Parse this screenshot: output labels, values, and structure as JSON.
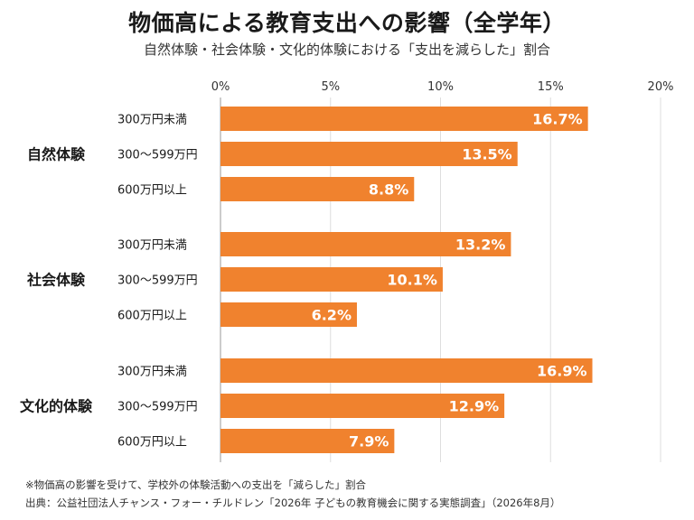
{
  "chart_data": {
    "type": "bar",
    "orientation": "horizontal",
    "title": "物価高による教育支出への影響（全学年）",
    "subtitle": "自然体験・社会体験・文化的体験における「支出を減らした」割合",
    "xlim": [
      0,
      20
    ],
    "ticks": [
      0,
      5,
      10,
      15,
      20
    ],
    "tick_labels": [
      "0%",
      "5%",
      "10%",
      "15%",
      "20%"
    ],
    "grid": true,
    "groups": [
      {
        "name": "自然体験",
        "bars": [
          {
            "label": "300万円未満",
            "value": 16.7,
            "value_label": "16.7%"
          },
          {
            "label": "300〜599万円",
            "value": 13.5,
            "value_label": "13.5%"
          },
          {
            "label": "600万円以上",
            "value": 8.8,
            "value_label": "8.8%"
          }
        ]
      },
      {
        "name": "社会体験",
        "bars": [
          {
            "label": "300万円未満",
            "value": 13.2,
            "value_label": "13.2%"
          },
          {
            "label": "300〜599万円",
            "value": 10.1,
            "value_label": "10.1%"
          },
          {
            "label": "600万円以上",
            "value": 6.2,
            "value_label": "6.2%"
          }
        ]
      },
      {
        "name": "文化的体験",
        "bars": [
          {
            "label": "300万円未満",
            "value": 16.9,
            "value_label": "16.9%"
          },
          {
            "label": "300〜599万円",
            "value": 12.9,
            "value_label": "12.9%"
          },
          {
            "label": "600万円以上",
            "value": 7.9,
            "value_label": "7.9%"
          }
        ]
      }
    ],
    "bar_color": "#f0822e",
    "notes": [
      "※物価高の影響を受けて、学校外の体験活動への支出を「減らした」割合",
      "出典：公益社団法人チャンス・フォー・チルドレン「2026年 子どもの教育機会に関する実態調査」（2026年8月）"
    ]
  }
}
